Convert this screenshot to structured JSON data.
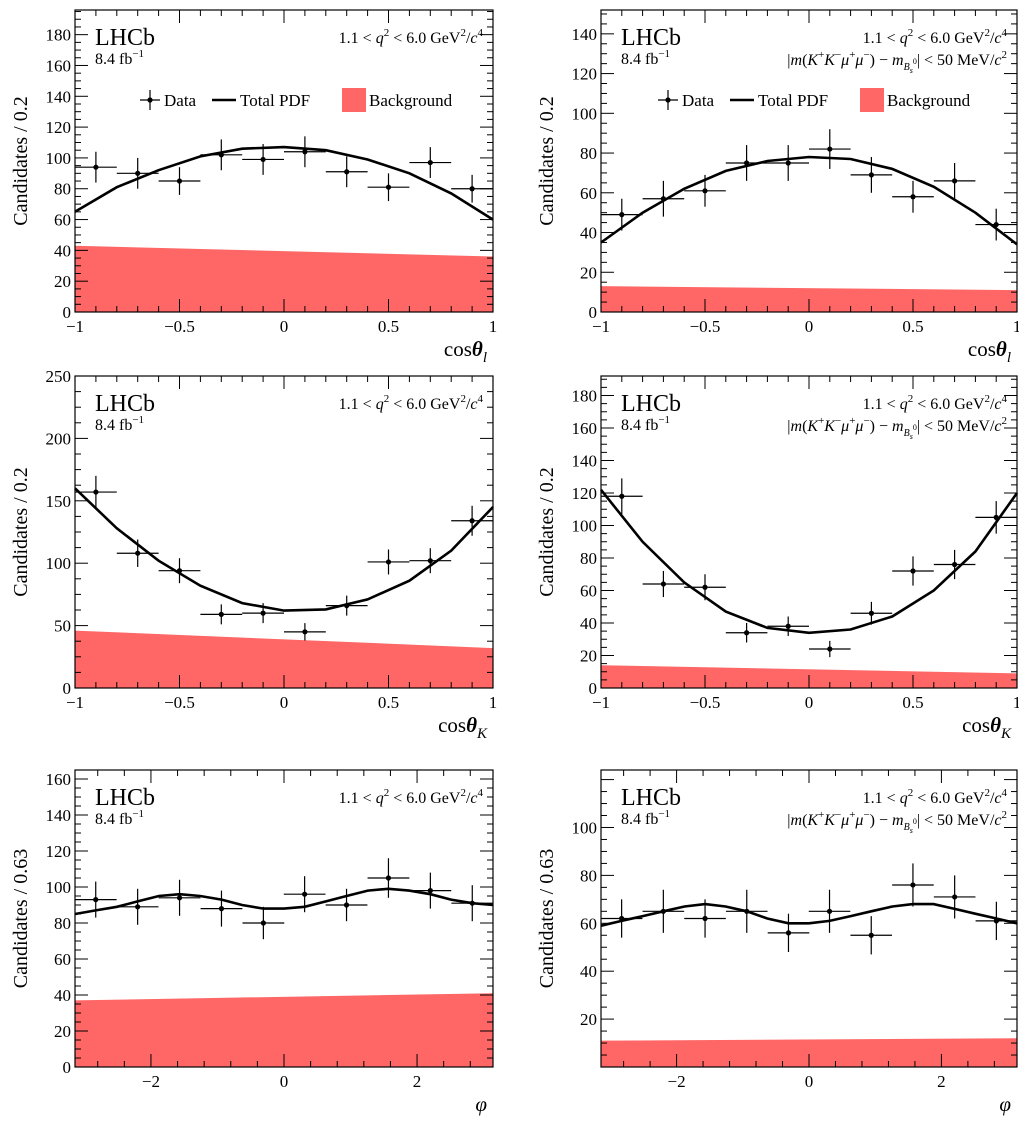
{
  "colors": {
    "background_fill": "#ff6666",
    "line": "#000000",
    "data": "#000000"
  },
  "panel_text": {
    "experiment": "LHCb",
    "luminosity": "8.4 fb",
    "luminosity_exp": "−1",
    "q2_cut": "1.1 < q² < 6.0 GeV²/c⁴",
    "mass_cut": "|m(K⁺K⁻μ⁺μ⁻) − m_Bs0| < 50 MeV/c²"
  },
  "legend": {
    "data": "Data",
    "total_pdf": "Total PDF",
    "background": "Background"
  },
  "chart_data": [
    {
      "type": "scatter",
      "name": "cos_theta_l_all",
      "xlabel": "cosθ_l",
      "ylabel": "Candidates / 0.2",
      "xlim": [
        -1,
        1
      ],
      "ylim": [
        0,
        196
      ],
      "xticks": [
        -1,
        -0.5,
        0,
        0.5,
        1
      ],
      "xtick_labels": [
        "−1",
        "−0.5",
        "0",
        "0.5",
        "1"
      ],
      "yticks": [
        0,
        20,
        40,
        60,
        80,
        100,
        120,
        140,
        160,
        180
      ],
      "x": [
        -0.9,
        -0.7,
        -0.5,
        -0.3,
        -0.1,
        0.1,
        0.3,
        0.5,
        0.7,
        0.9
      ],
      "y": [
        94,
        90,
        85,
        102,
        99,
        104,
        91,
        81,
        97,
        80
      ],
      "yerr": [
        10,
        10,
        9,
        10,
        10,
        10,
        10,
        9,
        10,
        9
      ],
      "xerr": 0.1,
      "fit": {
        "x": [
          -1,
          -0.8,
          -0.6,
          -0.4,
          -0.2,
          0,
          0.2,
          0.4,
          0.6,
          0.8,
          1
        ],
        "y": [
          65,
          81,
          92,
          101,
          106,
          107,
          105,
          99,
          90,
          77,
          60
        ]
      },
      "background": {
        "x": [
          -1,
          1
        ],
        "y": [
          43,
          36
        ]
      },
      "show_mass_cut": false,
      "show_legend": true
    },
    {
      "type": "scatter",
      "name": "cos_theta_l_window",
      "xlabel": "cosθ_l",
      "ylabel": "Candidates / 0.2",
      "xlim": [
        -1,
        1
      ],
      "ylim": [
        0,
        152
      ],
      "xticks": [
        -1,
        -0.5,
        0,
        0.5,
        1
      ],
      "xtick_labels": [
        "−1",
        "−0.5",
        "0",
        "0.5",
        "1"
      ],
      "yticks": [
        0,
        20,
        40,
        60,
        80,
        100,
        120,
        140
      ],
      "x": [
        -0.9,
        -0.7,
        -0.5,
        -0.3,
        -0.1,
        0.1,
        0.3,
        0.5,
        0.7,
        0.9
      ],
      "y": [
        49,
        57,
        61,
        75,
        75,
        82,
        69,
        58,
        66,
        44
      ],
      "yerr": [
        8,
        9,
        8,
        9,
        9,
        10,
        9,
        8,
        9,
        8
      ],
      "xerr": 0.1,
      "fit": {
        "x": [
          -1,
          -0.8,
          -0.6,
          -0.4,
          -0.2,
          0,
          0.2,
          0.4,
          0.6,
          0.8,
          1
        ],
        "y": [
          35,
          50,
          62,
          71,
          76,
          78,
          77,
          72,
          63,
          50,
          34
        ]
      },
      "background": {
        "x": [
          -1,
          1
        ],
        "y": [
          13,
          11
        ]
      },
      "show_mass_cut": true,
      "show_legend": true
    },
    {
      "type": "scatter",
      "name": "cos_theta_K_all",
      "xlabel": "cosθ_K",
      "ylabel": "Candidates / 0.2",
      "xlim": [
        -1,
        1
      ],
      "ylim": [
        0,
        250
      ],
      "xticks": [
        -1,
        -0.5,
        0,
        0.5,
        1
      ],
      "xtick_labels": [
        "−1",
        "−0.5",
        "0",
        "0.5",
        "1"
      ],
      "yticks": [
        0,
        50,
        100,
        150,
        200,
        250
      ],
      "x": [
        -0.9,
        -0.7,
        -0.5,
        -0.3,
        -0.1,
        0.1,
        0.3,
        0.5,
        0.7,
        0.9
      ],
      "y": [
        157,
        108,
        94,
        59,
        60,
        45,
        66,
        101,
        102,
        134
      ],
      "yerr": [
        13,
        11,
        10,
        8,
        8,
        7,
        8,
        10,
        10,
        12
      ],
      "xerr": 0.1,
      "fit": {
        "x": [
          -1,
          -0.8,
          -0.6,
          -0.4,
          -0.2,
          0,
          0.2,
          0.4,
          0.6,
          0.8,
          1
        ],
        "y": [
          160,
          128,
          102,
          82,
          68,
          62,
          63,
          71,
          86,
          110,
          145
        ]
      },
      "background": {
        "x": [
          -1,
          1
        ],
        "y": [
          46,
          32
        ]
      },
      "show_mass_cut": false,
      "show_legend": false
    },
    {
      "type": "scatter",
      "name": "cos_theta_K_window",
      "xlabel": "cosθ_K",
      "ylabel": "Candidates / 0.2",
      "xlim": [
        -1,
        1
      ],
      "ylim": [
        0,
        192
      ],
      "xticks": [
        -1,
        -0.5,
        0,
        0.5,
        1
      ],
      "xtick_labels": [
        "−1",
        "−0.5",
        "0",
        "0.5",
        "1"
      ],
      "yticks": [
        0,
        20,
        40,
        60,
        80,
        100,
        120,
        140,
        160,
        180
      ],
      "x": [
        -0.9,
        -0.7,
        -0.5,
        -0.3,
        -0.1,
        0.1,
        0.3,
        0.5,
        0.7,
        0.9
      ],
      "y": [
        118,
        64,
        62,
        34,
        38,
        24,
        46,
        72,
        76,
        105
      ],
      "yerr": [
        11,
        8,
        8,
        6,
        6,
        5,
        7,
        9,
        9,
        10
      ],
      "xerr": 0.1,
      "fit": {
        "x": [
          -1,
          -0.8,
          -0.6,
          -0.4,
          -0.2,
          0,
          0.2,
          0.4,
          0.6,
          0.8,
          1
        ],
        "y": [
          122,
          90,
          65,
          47,
          37,
          34,
          36,
          44,
          60,
          84,
          120
        ]
      },
      "background": {
        "x": [
          -1,
          1
        ],
        "y": [
          14,
          9
        ]
      },
      "show_mass_cut": true,
      "show_legend": false
    },
    {
      "type": "scatter",
      "name": "phi_all",
      "xlabel": "φ",
      "ylabel": "Candidates / 0.63",
      "xlim": [
        -3.1416,
        3.1416
      ],
      "ylim": [
        0,
        165
      ],
      "xticks": [
        -2,
        0,
        2
      ],
      "xtick_labels": [
        "−2",
        "0",
        "2"
      ],
      "yticks": [
        0,
        20,
        40,
        60,
        80,
        100,
        120,
        140,
        160
      ],
      "x": [
        -2.83,
        -2.2,
        -1.57,
        -0.94,
        -0.31,
        0.31,
        0.94,
        1.57,
        2.2,
        2.83
      ],
      "y": [
        93,
        89,
        94,
        88,
        80,
        96,
        90,
        105,
        98,
        91
      ],
      "yerr": [
        10,
        10,
        10,
        10,
        9,
        10,
        9,
        11,
        10,
        10
      ],
      "xerr": 0.314,
      "fit": {
        "x": [
          -3.14,
          -2.83,
          -2.51,
          -2.2,
          -1.88,
          -1.57,
          -1.26,
          -0.94,
          -0.63,
          -0.31,
          0,
          0.31,
          0.63,
          0.94,
          1.26,
          1.57,
          1.88,
          2.2,
          2.51,
          2.83,
          3.14
        ],
        "y": [
          85,
          87,
          89,
          92,
          95,
          96,
          95,
          93,
          90,
          88,
          88,
          89,
          92,
          95,
          98,
          99,
          98,
          96,
          93,
          91,
          90
        ]
      },
      "background": {
        "x": [
          -3.1416,
          3.1416
        ],
        "y": [
          37,
          41
        ]
      },
      "show_mass_cut": false,
      "show_legend": false
    },
    {
      "type": "scatter",
      "name": "phi_window",
      "xlabel": "φ",
      "ylabel": "Candidates / 0.63",
      "xlim": [
        -3.1416,
        3.1416
      ],
      "ylim": [
        0,
        124
      ],
      "xticks": [
        -2,
        0,
        2
      ],
      "xtick_labels": [
        "−2",
        "0",
        "2"
      ],
      "yticks": [
        20,
        40,
        60,
        80,
        100
      ],
      "x": [
        -2.83,
        -2.2,
        -1.57,
        -0.94,
        -0.31,
        0.31,
        0.94,
        1.57,
        2.2,
        2.83
      ],
      "y": [
        62,
        65,
        62,
        65,
        56,
        65,
        55,
        76,
        71,
        61
      ],
      "yerr": [
        8,
        9,
        8,
        9,
        8,
        9,
        8,
        9,
        9,
        8
      ],
      "xerr": 0.314,
      "fit": {
        "x": [
          -3.14,
          -2.83,
          -2.51,
          -2.2,
          -1.88,
          -1.57,
          -1.26,
          -0.94,
          -0.63,
          -0.31,
          0,
          0.31,
          0.63,
          0.94,
          1.26,
          1.57,
          1.88,
          2.2,
          2.51,
          2.83,
          3.14
        ],
        "y": [
          59,
          61,
          63,
          65,
          67,
          68,
          67,
          65,
          62,
          60,
          60,
          61,
          63,
          65,
          67,
          68,
          68,
          66,
          64,
          62,
          60
        ]
      },
      "background": {
        "x": [
          -3.1416,
          3.1416
        ],
        "y": [
          11,
          12
        ]
      },
      "show_mass_cut": true,
      "show_legend": false
    }
  ]
}
